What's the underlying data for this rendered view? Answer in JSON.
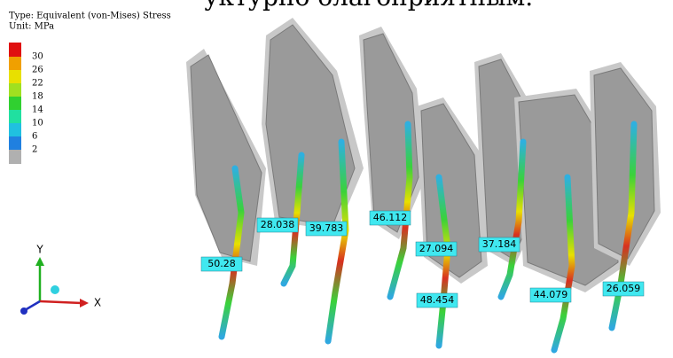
{
  "header": {
    "text": "уктурно благоприятным."
  },
  "legend": {
    "type": "Type: Equivalent (von-Mises) Stress",
    "unit": "Unit: MPa",
    "values": [
      30,
      26,
      22,
      18,
      14,
      10,
      6,
      2
    ]
  },
  "probes": [
    50.28,
    28.038,
    39.783,
    46.112,
    27.094,
    37.184,
    48.454,
    44.079,
    26.059
  ],
  "triad": {
    "y": "Y",
    "x": "X"
  }
}
